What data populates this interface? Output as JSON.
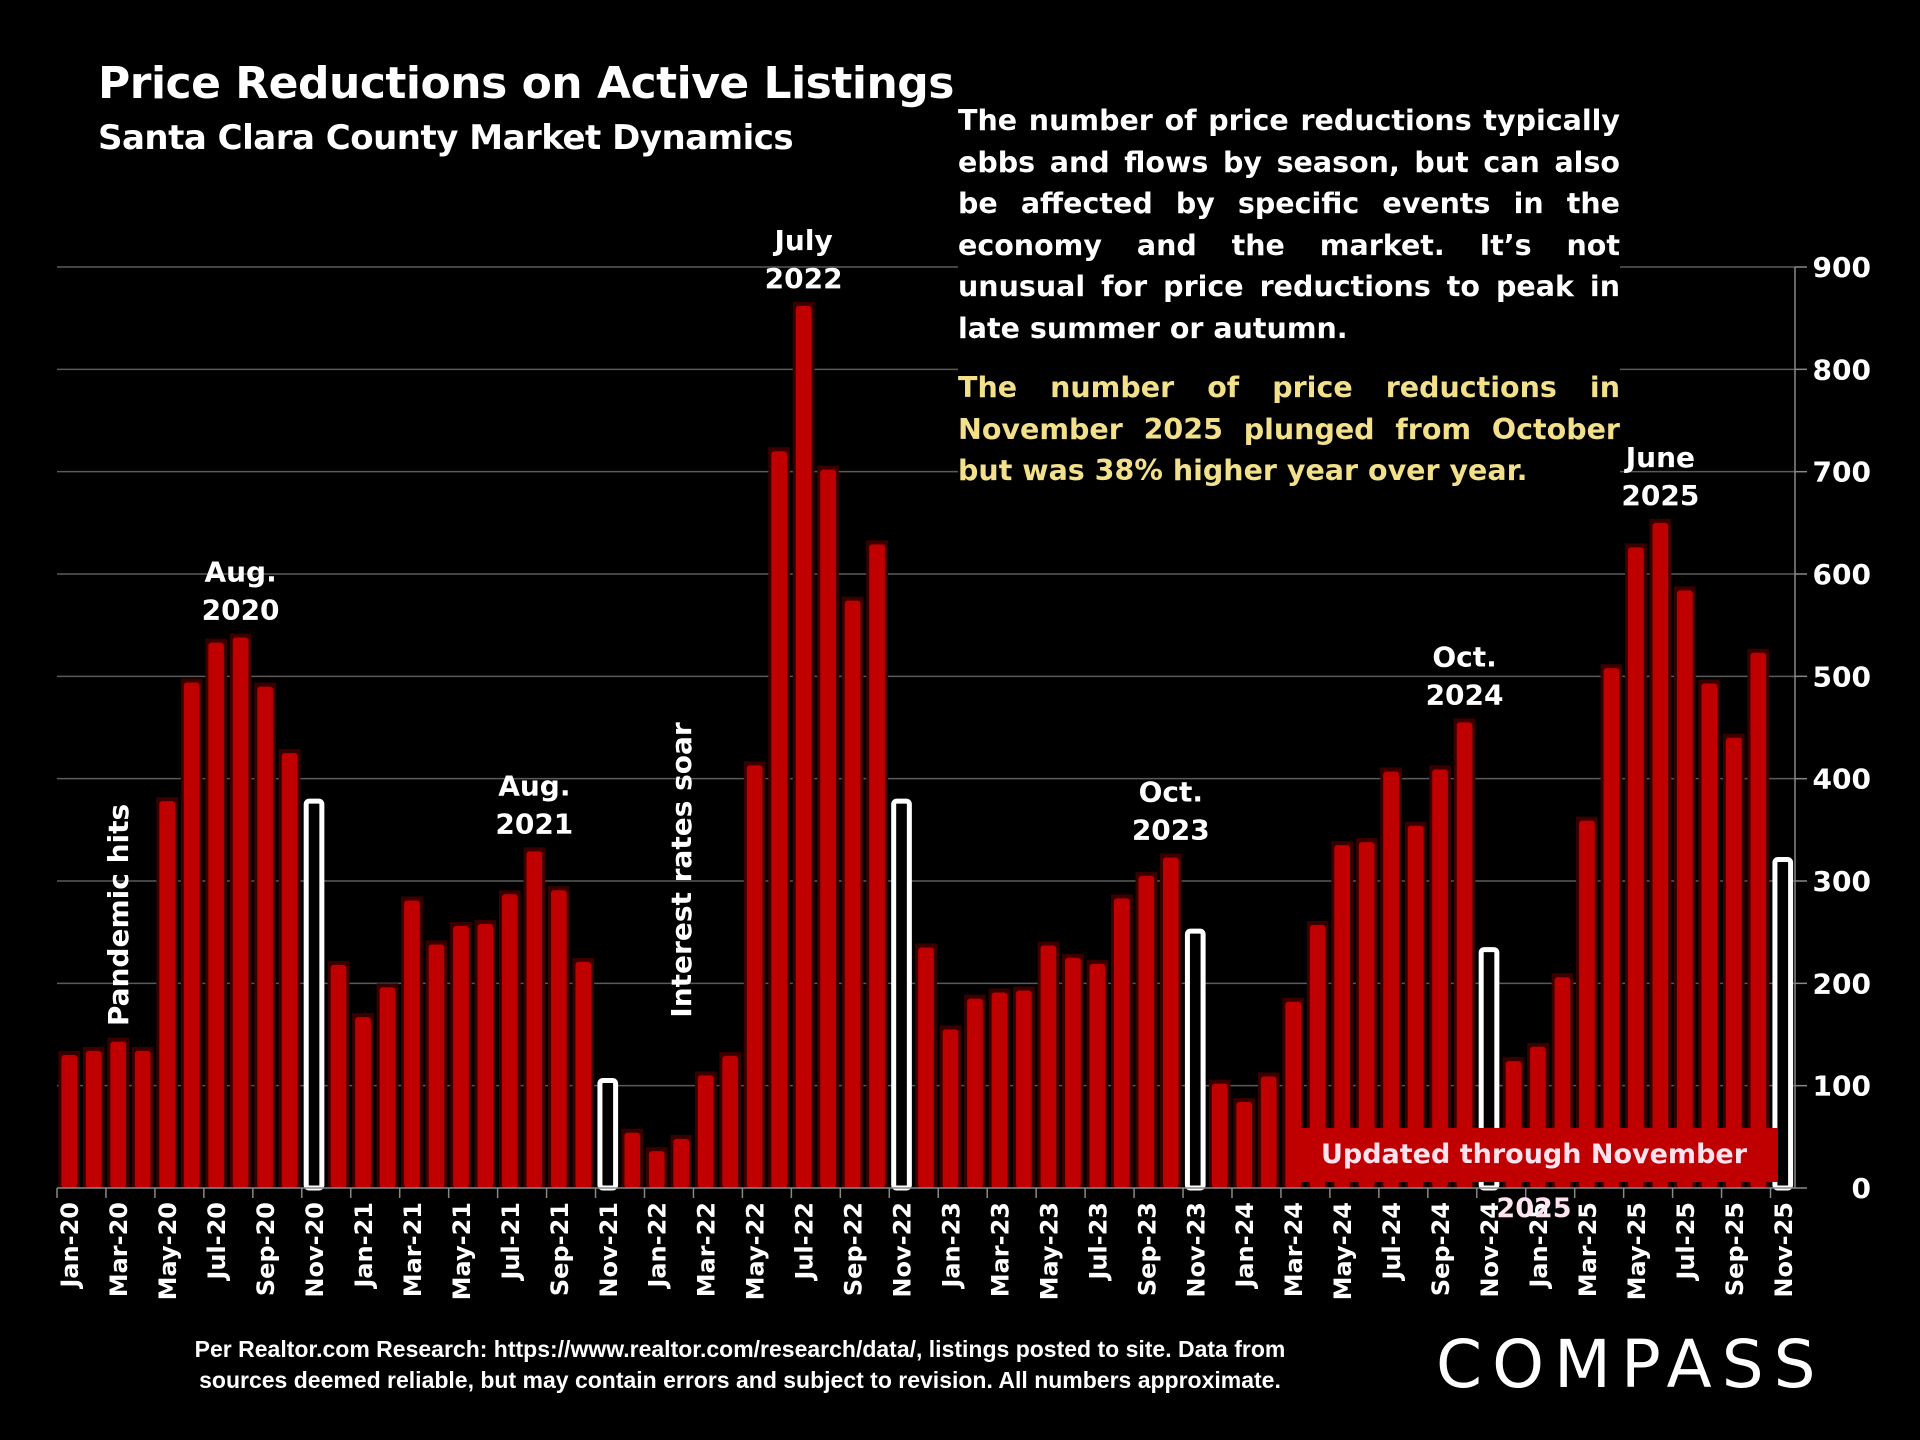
{
  "header": {
    "title": "Price Reductions on Active Listings",
    "subtitle": "Santa Clara County Market Dynamics"
  },
  "description": {
    "paragraph1": "The number of price reductions typically ebbs and flows by season, but can also be affected by specific events in the economy and the market. It’s not unusual for price reductions to peak in late summer or autumn.",
    "paragraph2": "The number of price reductions in November 2025 plunged from October but was 38% higher year over year."
  },
  "updated_banner": "Updated through November 2025",
  "footer": {
    "line1": "Per Realtor.com Research:  https://www.realtor.com/research/data/, listings posted to site. Data from",
    "line2": "sources deemed reliable, but may contain errors and subject to revision. All numbers approximate."
  },
  "logo_text": "COMPASS",
  "colors": {
    "bar": "#c00000",
    "highlight_bar": "#ffffff",
    "highlight_text": "#f2e08a",
    "gridline": "#5a5a5a"
  },
  "chart_data": {
    "type": "bar",
    "title": "Price Reductions on Active Listings",
    "subtitle": "Santa Clara County Market Dynamics",
    "xlabel": "",
    "ylabel": "",
    "ylim": [
      0,
      900
    ],
    "yticks": [
      0,
      100,
      200,
      300,
      400,
      500,
      600,
      700,
      800,
      900
    ],
    "y_axis_side": "right",
    "grid": true,
    "categories": [
      "Jan-20",
      "Feb-20",
      "Mar-20",
      "Apr-20",
      "May-20",
      "Jun-20",
      "Jul-20",
      "Aug-20",
      "Sep-20",
      "Oct-20",
      "Nov-20",
      "Dec-20",
      "Jan-21",
      "Feb-21",
      "Mar-21",
      "Apr-21",
      "May-21",
      "Jun-21",
      "Jul-21",
      "Aug-21",
      "Sep-21",
      "Oct-21",
      "Nov-21",
      "Dec-21",
      "Jan-22",
      "Feb-22",
      "Mar-22",
      "Apr-22",
      "May-22",
      "Jun-22",
      "Jul-22",
      "Aug-22",
      "Sep-22",
      "Oct-22",
      "Nov-22",
      "Dec-22",
      "Jan-23",
      "Feb-23",
      "Mar-23",
      "Apr-23",
      "May-23",
      "Jun-23",
      "Jul-23",
      "Aug-23",
      "Sep-23",
      "Oct-23",
      "Nov-23",
      "Dec-23",
      "Jan-24",
      "Feb-24",
      "Mar-24",
      "Apr-24",
      "May-24",
      "Jun-24",
      "Jul-24",
      "Aug-24",
      "Sep-24",
      "Oct-24",
      "Nov-24",
      "Dec-24",
      "Jan-25",
      "Feb-25",
      "Mar-25",
      "Apr-25",
      "May-25",
      "Jun-25",
      "Jul-25",
      "Aug-25",
      "Sep-25",
      "Oct-25",
      "Nov-25"
    ],
    "values": [
      130,
      134,
      143,
      134,
      378,
      494,
      533,
      538,
      490,
      425,
      378,
      218,
      167,
      196,
      281,
      238,
      256,
      258,
      287,
      329,
      291,
      221,
      105,
      54,
      36,
      48,
      110,
      129,
      413,
      720,
      862,
      702,
      574,
      629,
      378,
      235,
      155,
      185,
      191,
      193,
      237,
      225,
      219,
      283,
      305,
      323,
      251,
      102,
      84,
      109,
      182,
      257,
      335,
      338,
      407,
      354,
      409,
      455,
      233,
      124,
      138,
      206,
      359,
      508,
      626,
      650,
      584,
      493,
      440,
      523,
      321
    ],
    "highlighted": [
      "Nov-20",
      "Nov-21",
      "Nov-22",
      "Nov-23",
      "Nov-24",
      "Nov-25"
    ],
    "tick_labels": [
      "Jan-20",
      "Mar-20",
      "May-20",
      "Jul-20",
      "Sep-20",
      "Nov-20",
      "Jan-21",
      "Mar-21",
      "May-21",
      "Jul-21",
      "Sep-21",
      "Nov-21",
      "Jan-22",
      "Mar-22",
      "May-22",
      "Jul-22",
      "Sep-22",
      "Nov-22",
      "Jan-23",
      "Mar-23",
      "May-23",
      "Jul-23",
      "Sep-23",
      "Nov-23",
      "Jan-24",
      "Mar-24",
      "May-24",
      "Jul-24",
      "Sep-24",
      "Nov-24",
      "Jan-25",
      "Mar-25",
      "May-25",
      "Jul-25",
      "Sep-25",
      "Nov-25"
    ],
    "annotations": [
      {
        "text": [
          "Aug.",
          "2020"
        ],
        "category": "Aug-20",
        "orientation": "horizontal"
      },
      {
        "text": [
          "Aug.",
          "2021"
        ],
        "category": "Aug-21",
        "orientation": "horizontal"
      },
      {
        "text": [
          "July",
          "2022"
        ],
        "category": "Jul-22",
        "orientation": "horizontal"
      },
      {
        "text": [
          "Oct.",
          "2023"
        ],
        "category": "Oct-23",
        "orientation": "horizontal"
      },
      {
        "text": [
          "Oct.",
          "2024"
        ],
        "category": "Oct-24",
        "orientation": "horizontal"
      },
      {
        "text": [
          "June",
          "2025"
        ],
        "category": "Jun-25",
        "orientation": "horizontal"
      },
      {
        "text": [
          "Pandemic hits"
        ],
        "category": "Mar-20",
        "orientation": "vertical"
      },
      {
        "text": [
          "Interest rates soar"
        ],
        "category": "Feb-22",
        "orientation": "vertical"
      }
    ]
  }
}
